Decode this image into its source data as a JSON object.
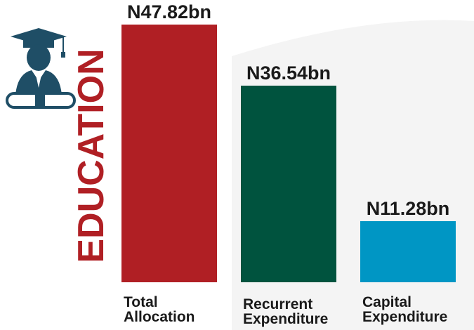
{
  "chart_data": {
    "type": "bar",
    "title": "EDUCATION",
    "categories": [
      "Total Allocation",
      "Recurrent Expenditure",
      "Capital Expenditure"
    ],
    "values": [
      47.82,
      36.54,
      11.28
    ],
    "value_labels": [
      "N47.82bn",
      "N36.54bn",
      "N11.28bn"
    ],
    "colors": [
      "#b01f24",
      "#00533e",
      "#0096c4"
    ]
  }
}
